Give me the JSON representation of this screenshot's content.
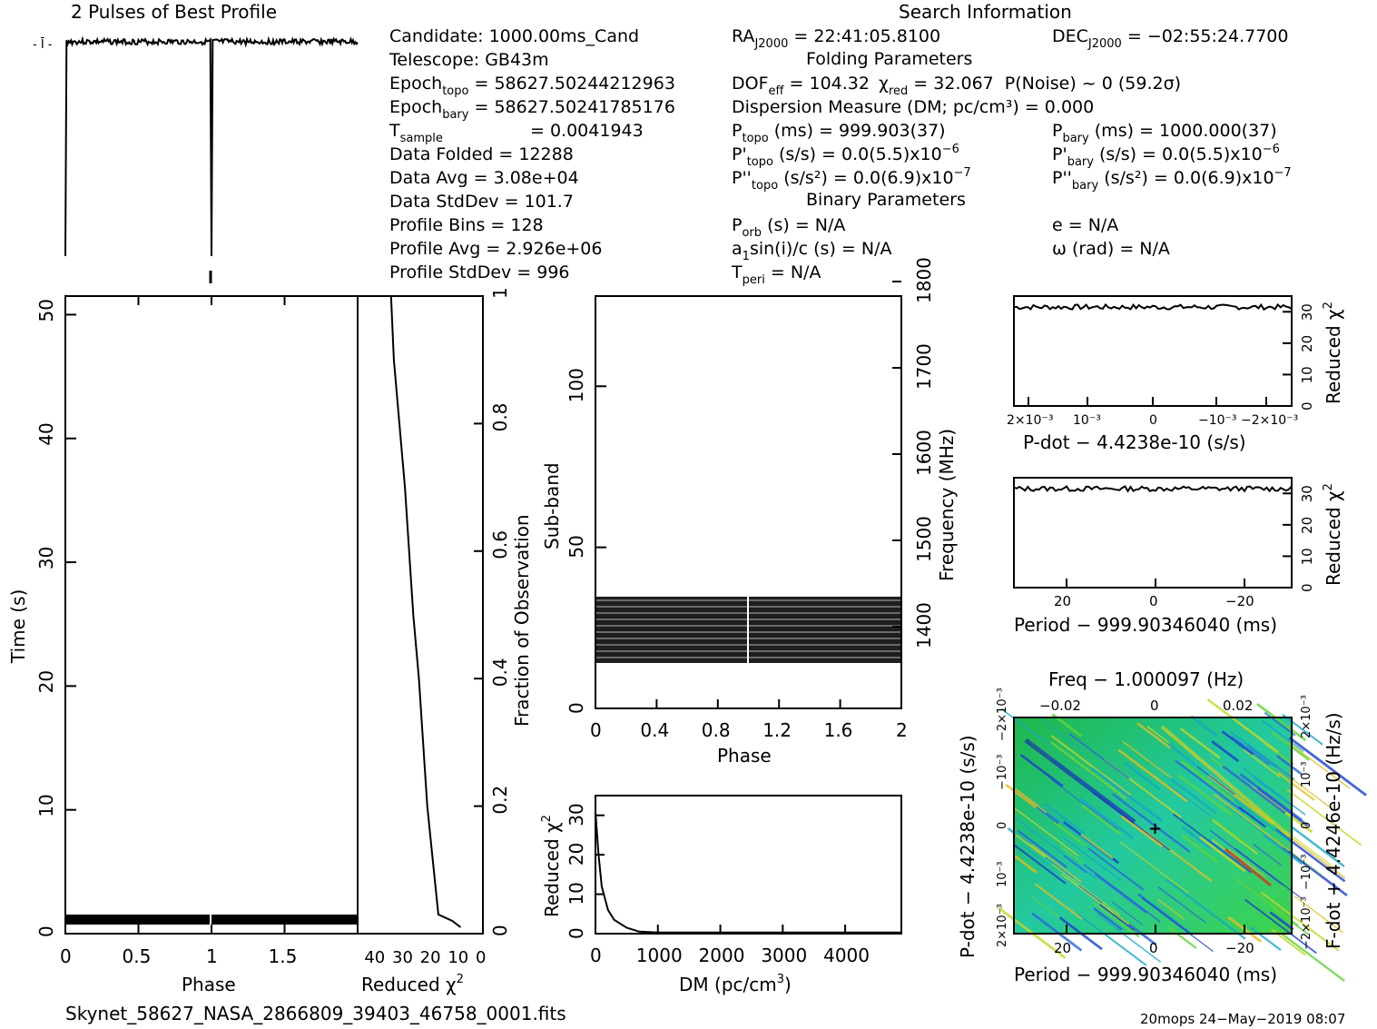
{
  "profile": {
    "title": "2 Pulses of Best Profile"
  },
  "info": {
    "candidate": "Candidate:  1000.00ms_Cand",
    "telescope": "Telescope:   GB43m",
    "epoch_topo": " = 58627.50244212963",
    "epoch_bary": " = 58627.50241785176",
    "tsample": "=   0.0041943",
    "data_folded": "Data Folded        =   12288",
    "data_avg": "Data Avg            =   3.08e+04",
    "data_stddev": "Data StdDev       =   101.7",
    "profile_bins": "Profile Bins       =   128",
    "profile_avg": "Profile Avg         =   2.926e+06",
    "profile_stddev": "Profile StdDev  =   996"
  },
  "search": {
    "title": "Search Information",
    "ra": " = 22:41:05.8100",
    "dec": " = −02:55:24.7700",
    "folding_title": "Folding Parameters",
    "dof_eff": " = 104.32",
    "chi2_red": " = 32.067",
    "p_noise": "P(Noise) ~ 0    (59.2σ)",
    "dm": "Dispersion Measure (DM; pc/cm³) = 0.000",
    "p_topo": " (ms) =  999.903(37)",
    "p_bary": " (ms) =  1000.000(37)",
    "pdot_topo": " (s/s) = 0.0(5.5)x10",
    "pdot_topo_exp": "−6",
    "pdot_bary": " (s/s) = 0.0(5.5)x10",
    "pdot_bary_exp": "−6",
    "pddot_topo": " (s/s²) = 0.0(6.9)x10",
    "pddot_topo_exp": "−7",
    "pddot_bary": " (s/s²) = 0.0(6.9)x10",
    "pddot_bary_exp": "−7",
    "binary_title": "Binary Parameters",
    "porb": " (s) = N/A",
    "e": "e = N/A",
    "a1sini": "sin(i)/c (s) = N/A",
    "omega": "ω (rad) = N/A",
    "tperi": " = N/A"
  },
  "charts": {
    "time_phase": {
      "xlabel": "Phase",
      "ylabel": "Time (s)",
      "xticks": [
        "0",
        "0.5",
        "1",
        "1.5"
      ],
      "yticks": [
        "0",
        "10",
        "20",
        "30",
        "40",
        "50"
      ]
    },
    "chi2_time": {
      "xlabel": "Reduced",
      "ylabel": "Fraction of Observation",
      "xticks": [
        "40",
        "30",
        "20",
        "10",
        "0"
      ],
      "yticks": [
        "0",
        "0.2",
        "0.4",
        "0.6",
        "0.8",
        "1"
      ]
    },
    "subbands": {
      "xlabel": "Phase",
      "ylabel": "Sub-band",
      "right_label": "Frequency (MHz)",
      "xticks": [
        "0",
        "0.4",
        "0.8",
        "1.2",
        "1.6",
        "2"
      ],
      "yticks": [
        "0",
        "50",
        "100"
      ],
      "freq_ticks": [
        "1400",
        "1500",
        "1600",
        "1700",
        "1800"
      ]
    },
    "dm": {
      "xlabel": "DM (pc/cm",
      "ylabel": "Reduced",
      "xticks": [
        "0",
        "1000",
        "2000",
        "3000",
        "4000"
      ],
      "yticks": [
        "0",
        "10",
        "20",
        "30"
      ]
    },
    "pdot": {
      "xlabel": "P-dot − 4.4238e-10 (s/s)",
      "ylabel": "Reduced",
      "xticks": [
        "2×10⁻³",
        "10⁻³",
        "0",
        "−10⁻³",
        "−2×10⁻³"
      ],
      "yticks": [
        "0",
        "10",
        "20",
        "30"
      ]
    },
    "period": {
      "xlabel": "Period − 999.90346040 (ms)",
      "ylabel": "Reduced",
      "xticks": [
        "20",
        "0",
        "−20"
      ],
      "yticks": [
        "0",
        "10",
        "20",
        "30"
      ]
    },
    "p_pdot_map": {
      "top_label": "Freq − 1.000097 (Hz)",
      "xlabel": "Period − 999.90346040 (ms)",
      "left_label": "P-dot − 4.4238e-10 (s/s)",
      "right_label": "F-dot + 4.4246e-10 (Hz/s)",
      "xticks": [
        "20",
        "0",
        "−20"
      ],
      "top_ticks": [
        "−0.02",
        "0",
        "0.02"
      ],
      "left_ticks": [
        "2×10⁻³",
        "10⁻³",
        "0",
        "−10⁻³",
        "−2×10⁻³"
      ],
      "right_ticks": [
        "−2×10⁻³",
        "−10⁻³",
        "0",
        "10⁻³",
        "2×10⁻³"
      ]
    }
  },
  "chart_data": [
    {
      "type": "line",
      "title": "2 Pulses of Best Profile",
      "x": [
        0,
        0.01,
        0.02,
        0.5,
        0.98,
        0.99,
        1.0,
        1.01,
        1.02,
        1.5,
        1.98,
        2.0
      ],
      "values": [
        1.0,
        0.02,
        1.0,
        1.0,
        1.0,
        0.02,
        0.02,
        1.0,
        1.0,
        1.0,
        1.0,
        1.0
      ],
      "xlabel": "",
      "ylabel": ""
    },
    {
      "type": "line",
      "xlabel": "Reduced χ2",
      "ylabel": "Fraction of Observation",
      "x": [
        8,
        11,
        16,
        20,
        23,
        25,
        28,
        30,
        32,
        33
      ],
      "values": [
        0.01,
        0.02,
        0.03,
        0.2,
        0.4,
        0.5,
        0.7,
        0.8,
        0.9,
        1.0
      ],
      "xlim": [
        45,
        0
      ],
      "ylim": [
        0,
        1
      ]
    },
    {
      "type": "heatmap",
      "xlabel": "Phase",
      "ylabel": "Sub-band",
      "xlim": [
        0,
        2
      ],
      "ylim": [
        0,
        128
      ],
      "description_rows": [
        14,
        35
      ]
    },
    {
      "type": "line",
      "xlabel": "DM (pc/cm3)",
      "ylabel": "Reduced χ2",
      "x": [
        0,
        50,
        100,
        200,
        300,
        400,
        500,
        700,
        1000,
        2000,
        3000,
        4000,
        4900
      ],
      "values": [
        31,
        20,
        12,
        6,
        3.5,
        2.5,
        1.5,
        0.5,
        0.3,
        0.3,
        0.3,
        0.3,
        0.3
      ],
      "xlim": [
        0,
        4900
      ],
      "ylim": [
        0,
        35
      ]
    },
    {
      "type": "line",
      "xlabel": "P-dot − 4.4238e-10 (s/s)",
      "ylabel": "Reduced χ2",
      "x": [
        0.0022,
        0.0015,
        0.001,
        0.0005,
        0,
        -0.0005,
        -0.001,
        -0.0015,
        -0.0022
      ],
      "values": [
        32,
        31,
        31.5,
        31,
        32,
        31.5,
        31,
        32,
        32.5
      ],
      "ylim": [
        0,
        35
      ]
    },
    {
      "type": "line",
      "xlabel": "Period − 999.90346040 (ms)",
      "ylabel": "Reduced χ2",
      "x": [
        31,
        20,
        10,
        0,
        -10,
        -20,
        -31
      ],
      "values": [
        32,
        31.5,
        32,
        31,
        32.5,
        32,
        32
      ],
      "ylim": [
        0,
        35
      ]
    }
  ],
  "footer": {
    "filename": "Skynet_58627_NASA_2866809_39403_46758_0001.fits",
    "stamp": "20mops 24−May−2019 08:07"
  }
}
